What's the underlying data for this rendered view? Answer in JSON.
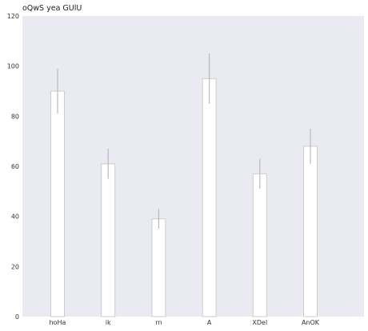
{
  "chart_data": {
    "type": "bar",
    "title": "oQwS yea GUlU",
    "xlabel": "",
    "ylabel": "",
    "categories": [
      "hoHa",
      "ik",
      "rn",
      "A",
      "XDel",
      "AnOK"
    ],
    "values": [
      90,
      61,
      39,
      95,
      57,
      68
    ],
    "errors": [
      9,
      6,
      4,
      10,
      6,
      7
    ],
    "ylim": [
      0,
      120
    ],
    "yticks": [
      0,
      20,
      40,
      60,
      80,
      100,
      120
    ],
    "grid": false,
    "colors": {
      "plot_background": "#eaeaf2",
      "bar_fill": "#ffffff",
      "bar_edge": "#cccccc",
      "error_bar": "#bbbbbb"
    }
  }
}
